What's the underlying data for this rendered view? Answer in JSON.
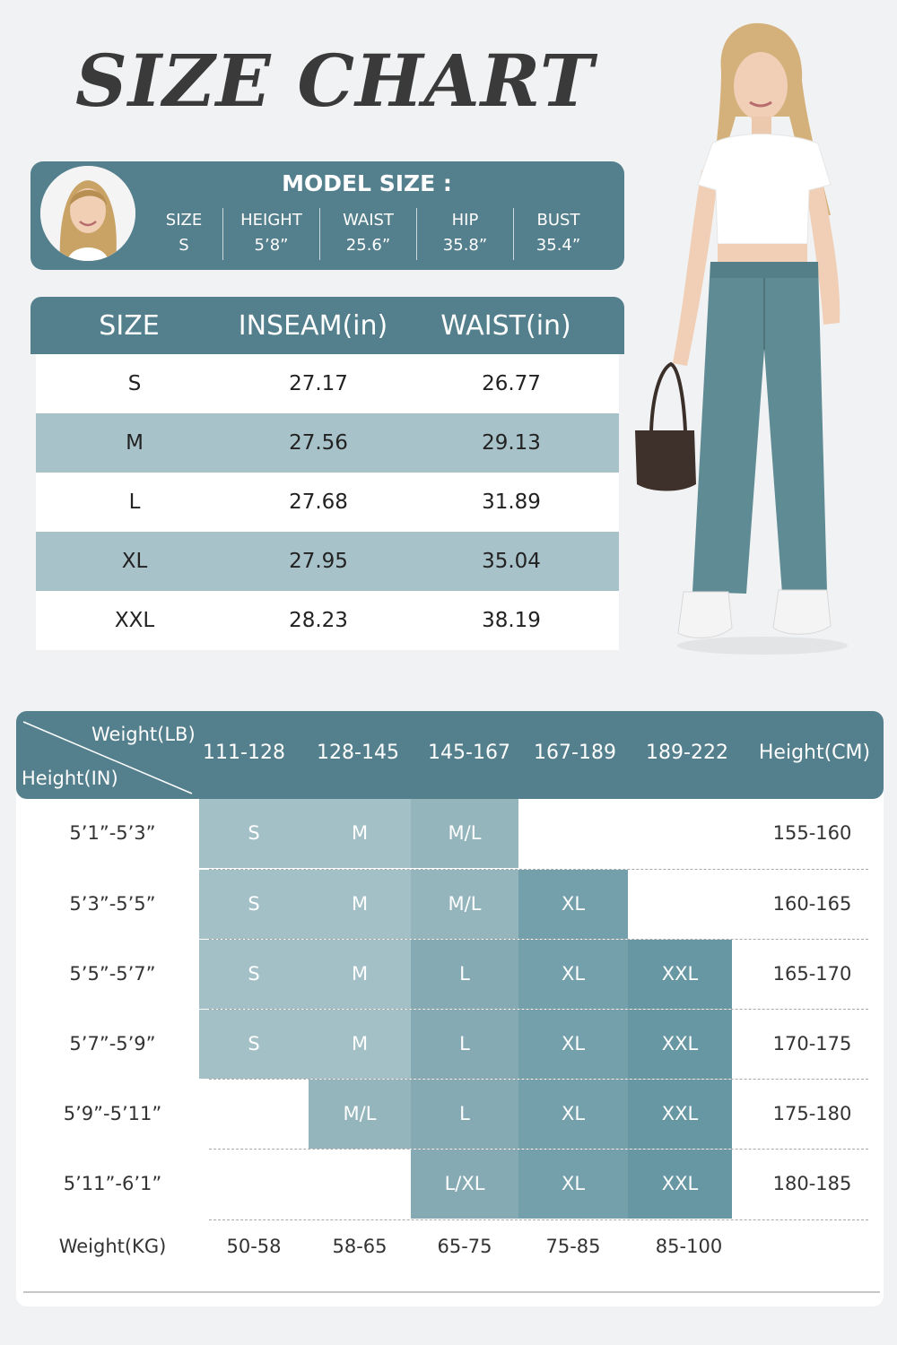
{
  "title": "SIZE CHART",
  "model": {
    "title": "MODEL SIZE :",
    "stats": [
      {
        "label": "SIZE",
        "value": "S"
      },
      {
        "label": "HEIGHT",
        "value": "5’8”"
      },
      {
        "label": "WAIST",
        "value": "25.6”"
      },
      {
        "label": "HIP",
        "value": "35.8”"
      },
      {
        "label": "BUST",
        "value": "35.4”"
      }
    ]
  },
  "inseam_table": {
    "headers": [
      "SIZE",
      "INSEAM(in)",
      "WAIST(in)"
    ],
    "rows": [
      [
        "S",
        "27.17",
        "26.77"
      ],
      [
        "M",
        "27.56",
        "29.13"
      ],
      [
        "L",
        "27.68",
        "31.89"
      ],
      [
        "XL",
        "27.95",
        "35.04"
      ],
      [
        "XXL",
        "28.23",
        "38.19"
      ]
    ]
  },
  "size_grid": {
    "corner_weight_label": "Weight(LB)",
    "corner_height_label": "Height(IN)",
    "weight_lb": [
      "111-128",
      "128-145",
      "145-167",
      "167-189",
      "189-222"
    ],
    "height_cm_label": "Height(CM)",
    "rows": [
      {
        "height_in": "5’1”-5’3”",
        "sizes": [
          "S",
          "M",
          "M/L",
          "",
          ""
        ],
        "height_cm": "155-160"
      },
      {
        "height_in": "5’3”-5’5”",
        "sizes": [
          "S",
          "M",
          "M/L",
          "XL",
          ""
        ],
        "height_cm": "160-165"
      },
      {
        "height_in": "5’5”-5’7”",
        "sizes": [
          "S",
          "M",
          "L",
          "XL",
          "XXL"
        ],
        "height_cm": "165-170"
      },
      {
        "height_in": "5’7”-5’9”",
        "sizes": [
          "S",
          "M",
          "L",
          "XL",
          "XXL"
        ],
        "height_cm": "170-175"
      },
      {
        "height_in": "5’9”-5’11”",
        "sizes": [
          "",
          "M/L",
          "L",
          "XL",
          "XXL"
        ],
        "height_cm": "175-180"
      },
      {
        "height_in": "5’11”-6’1”",
        "sizes": [
          "",
          "",
          "L/XL",
          "XL",
          "XXL"
        ],
        "height_cm": "180-185"
      }
    ],
    "weight_kg_label": "Weight(KG)",
    "weight_kg": [
      "50-58",
      "58-65",
      "65-75",
      "75-85",
      "85-100"
    ]
  },
  "colors": {
    "header": "#547f8d",
    "stripe": "#a8c2c9",
    "shade_1": "#a3c0c7",
    "shade_2": "#95b5bd",
    "shade_3": "#86aab3",
    "shade_4": "#73a0ab",
    "shade_5": "#6697a3"
  }
}
